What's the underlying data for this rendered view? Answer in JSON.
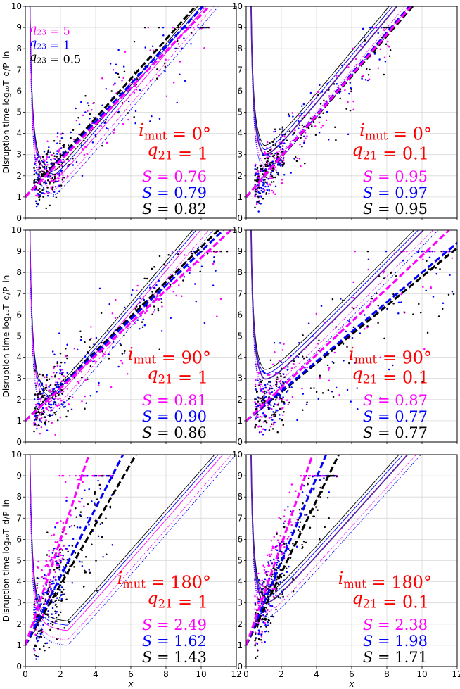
{
  "figure": {
    "ylabel": "Disruption time log₁₀T_d/P_in",
    "xlabel": "x",
    "colors": {
      "q5": "#ff00ff",
      "q1": "#0000ff",
      "q05": "#000000",
      "ann": "#ff0000",
      "fit": "#5a1ea8"
    },
    "legend": [
      {
        "label": "q₂₃ = 5",
        "color": "#ff00ff"
      },
      {
        "label": "q₂₃ = 1",
        "color": "#0000ff"
      },
      {
        "label": "q₂₃ = 0.5",
        "color": "#000000"
      }
    ]
  },
  "chart_data": [
    {
      "type": "scatter",
      "panel": "top-left",
      "imut": "i_mut = 0°",
      "q21": "q₂₁ = 1",
      "xlim": [
        0,
        12
      ],
      "ylim": [
        0,
        10
      ],
      "xticks": [
        0,
        2,
        4,
        6,
        8,
        10,
        12
      ],
      "yticks": [
        0,
        1,
        2,
        3,
        4,
        5,
        6,
        7,
        8,
        9,
        10
      ],
      "grid": true,
      "legend": "top-left",
      "S": [
        {
          "label": "S = 0.76",
          "value": 0.76,
          "color": "#ff00ff"
        },
        {
          "label": "S = 0.79",
          "value": 0.79,
          "color": "#0000ff"
        },
        {
          "label": "S = 0.82",
          "value": 0.82,
          "color": "#000000"
        }
      ],
      "fit_lines": [
        {
          "color": "#ff00ff",
          "intercept": 1.0,
          "slope": 0.86
        },
        {
          "color": "#0000ff",
          "intercept": 1.0,
          "slope": 0.89
        },
        {
          "color": "#000000",
          "intercept": 1.0,
          "slope": 0.93
        }
      ],
      "stability_curves": {
        "min": 2.5,
        "slope": 0.98,
        "shift": 0.9
      },
      "scatter_spread": 0.55,
      "x_max_points": 10.5
    },
    {
      "type": "scatter",
      "panel": "top-right",
      "imut": "i_mut = 0°",
      "q21": "q₂₁ = 0.1",
      "xlim": [
        0,
        12
      ],
      "ylim": [
        0,
        10
      ],
      "xticks": [
        0,
        2,
        4,
        6,
        8,
        10,
        12
      ],
      "yticks": [
        0,
        1,
        2,
        3,
        4,
        5,
        6,
        7,
        8,
        9,
        10
      ],
      "grid": true,
      "S": [
        {
          "label": "S = 0.95",
          "value": 0.95,
          "color": "#ff00ff"
        },
        {
          "label": "S = 0.97",
          "value": 0.97,
          "color": "#0000ff"
        },
        {
          "label": "S = 0.95",
          "value": 0.95,
          "color": "#000000"
        }
      ],
      "fit_lines": [
        {
          "color": "#ff00ff",
          "intercept": 1.0,
          "slope": 0.96
        },
        {
          "color": "#0000ff",
          "intercept": 1.0,
          "slope": 0.97
        },
        {
          "color": "#000000",
          "intercept": 1.0,
          "slope": 0.95
        }
      ],
      "stability_curves": {
        "min": 3.3,
        "slope": 1.0,
        "shift": 0.2
      },
      "scatter_spread": 0.5,
      "x_max_points": 8.5
    },
    {
      "type": "scatter",
      "panel": "middle-left",
      "imut": "i_mut = 90°",
      "q21": "q₂₁ = 1",
      "xlim": [
        0,
        12
      ],
      "ylim": [
        0,
        10
      ],
      "xticks": [
        0,
        2,
        4,
        6,
        8,
        10,
        12
      ],
      "yticks": [
        0,
        1,
        2,
        3,
        4,
        5,
        6,
        7,
        8,
        9,
        10
      ],
      "grid": true,
      "S": [
        {
          "label": "S = 0.81",
          "value": 0.81,
          "color": "#ff00ff"
        },
        {
          "label": "S = 0.90",
          "value": 0.9,
          "color": "#0000ff"
        },
        {
          "label": "S = 0.86",
          "value": 0.86,
          "color": "#000000"
        }
      ],
      "fit_lines": [
        {
          "color": "#ff00ff",
          "intercept": 1.0,
          "slope": 0.77
        },
        {
          "color": "#0000ff",
          "intercept": 1.0,
          "slope": 0.8
        },
        {
          "color": "#000000",
          "intercept": 1.0,
          "slope": 0.82
        }
      ],
      "stability_curves": {
        "min": 2.5,
        "slope": 0.98,
        "shift": 0.6
      },
      "scatter_spread": 0.6,
      "x_max_points": 11.5
    },
    {
      "type": "scatter",
      "panel": "middle-right",
      "imut": "i_mut = 90°",
      "q21": "q₂₁ = 0.1",
      "xlim": [
        0,
        12
      ],
      "ylim": [
        0,
        10
      ],
      "xticks": [
        0,
        2,
        4,
        6,
        8,
        10,
        12
      ],
      "yticks": [
        0,
        1,
        2,
        3,
        4,
        5,
        6,
        7,
        8,
        9,
        10
      ],
      "grid": true,
      "S": [
        {
          "label": "S = 0.87",
          "value": 0.87,
          "color": "#ff00ff"
        },
        {
          "label": "S = 0.77",
          "value": 0.77,
          "color": "#0000ff"
        },
        {
          "label": "S = 0.77",
          "value": 0.77,
          "color": "#000000"
        }
      ],
      "fit_lines": [
        {
          "color": "#ff00ff",
          "intercept": 1.0,
          "slope": 0.78
        },
        {
          "color": "#0000ff",
          "intercept": 1.0,
          "slope": 0.7
        },
        {
          "color": "#000000",
          "intercept": 1.0,
          "slope": 0.68
        }
      ],
      "stability_curves": {
        "min": 3.3,
        "slope": 0.82,
        "shift": 0.2
      },
      "scatter_spread": 0.75,
      "x_max_points": 11.8
    },
    {
      "type": "scatter",
      "panel": "bottom-left",
      "imut": "i_mut = 180°",
      "q21": "q₂₁ = 1",
      "xlim": [
        0,
        12
      ],
      "ylim": [
        0,
        10
      ],
      "xticks": [
        0,
        2,
        4,
        6,
        8,
        10,
        12
      ],
      "yticks": [
        0,
        1,
        2,
        3,
        4,
        5,
        6,
        7,
        8,
        9,
        10
      ],
      "grid": true,
      "S": [
        {
          "label": "S = 2.49",
          "value": 2.49,
          "color": "#ff00ff"
        },
        {
          "label": "S = 1.62",
          "value": 1.62,
          "color": "#0000ff"
        },
        {
          "label": "S = 1.43",
          "value": 1.43,
          "color": "#000000"
        }
      ],
      "fit_lines": [
        {
          "color": "#ff00ff",
          "intercept": 1.0,
          "slope": 2.49
        },
        {
          "color": "#0000ff",
          "intercept": 1.0,
          "slope": 1.62
        },
        {
          "color": "#000000",
          "intercept": 1.0,
          "slope": 1.43
        }
      ],
      "stability_curves": {
        "min": 2.5,
        "slope": 0.95,
        "shift": 1.6
      },
      "scatter_spread": 0.9,
      "x_max_points": 5.0
    },
    {
      "type": "scatter",
      "panel": "bottom-right",
      "imut": "i_mut = 180°",
      "q21": "q₂₁ = 0.1",
      "xlim": [
        0,
        12
      ],
      "ylim": [
        0,
        10
      ],
      "xticks": [
        0,
        2,
        4,
        6,
        8,
        10,
        12
      ],
      "yticks": [
        0,
        1,
        2,
        3,
        4,
        5,
        6,
        7,
        8,
        9,
        10
      ],
      "grid": true,
      "S": [
        {
          "label": "S = 2.38",
          "value": 2.38,
          "color": "#ff00ff"
        },
        {
          "label": "S = 1.98",
          "value": 1.98,
          "color": "#0000ff"
        },
        {
          "label": "S = 1.71",
          "value": 1.71,
          "color": "#000000"
        }
      ],
      "fit_lines": [
        {
          "color": "#ff00ff",
          "intercept": 1.0,
          "slope": 2.38
        },
        {
          "color": "#0000ff",
          "intercept": 1.0,
          "slope": 1.98
        },
        {
          "color": "#000000",
          "intercept": 1.0,
          "slope": 1.71
        }
      ],
      "stability_curves": {
        "min": 3.3,
        "slope": 0.92,
        "shift": 0.2
      },
      "scatter_spread": 0.7,
      "x_max_points": 5.2
    }
  ]
}
